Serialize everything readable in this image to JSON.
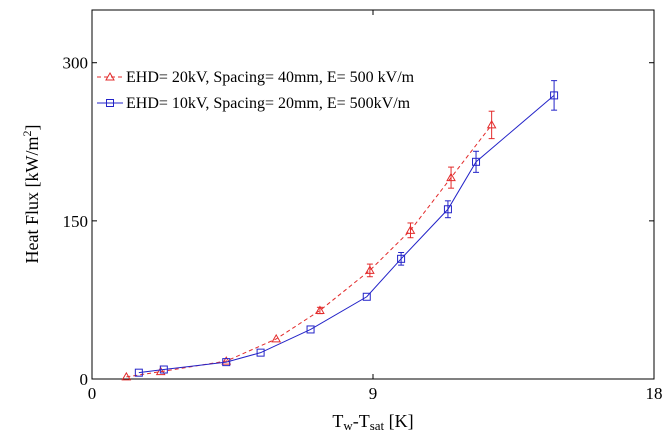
{
  "chart_data": {
    "type": "line",
    "title": "",
    "xlabel": {
      "base": "T",
      "sub1": "w",
      "mid": "-T",
      "sub2": "sat",
      "unit": " [K]"
    },
    "ylabel": {
      "main": "Heat Flux [kW/m",
      "sup": "2",
      "close": "]"
    },
    "xlim": [
      0,
      18
    ],
    "ylim": [
      0,
      350
    ],
    "xticks": [
      0,
      9,
      18
    ],
    "yticks": [
      0,
      150,
      300
    ],
    "xtick_labels": [
      "0",
      "9",
      "18"
    ],
    "ytick_labels": [
      "0",
      "150",
      "300"
    ],
    "grid": false,
    "legend_position": "top-left",
    "series": [
      {
        "name": "EHD= 20kV, Spacing= 40mm, E= 500 kV/m",
        "color": "#e32b2b",
        "line_style": "dashed",
        "marker": "triangle",
        "x": [
          1.1,
          2.2,
          4.3,
          5.9,
          7.3,
          8.9,
          10.2,
          11.5,
          12.8
        ],
        "y": [
          2,
          7,
          17,
          38,
          65,
          103,
          141,
          191,
          241
        ],
        "err": [
          0,
          0,
          0,
          0,
          3,
          6,
          7,
          10,
          13
        ]
      },
      {
        "name": "EHD= 10kV, Spacing= 20mm, E= 500kV/m",
        "color": "#2323c8",
        "line_style": "solid",
        "marker": "square",
        "x": [
          1.5,
          2.3,
          4.3,
          5.4,
          7.0,
          8.8,
          9.9,
          11.4,
          12.3,
          14.8
        ],
        "y": [
          6,
          9,
          16,
          25,
          47,
          78,
          114,
          161,
          206,
          269
        ],
        "err": [
          0,
          0,
          0,
          0,
          0,
          0,
          6,
          8,
          10,
          14
        ]
      }
    ]
  }
}
